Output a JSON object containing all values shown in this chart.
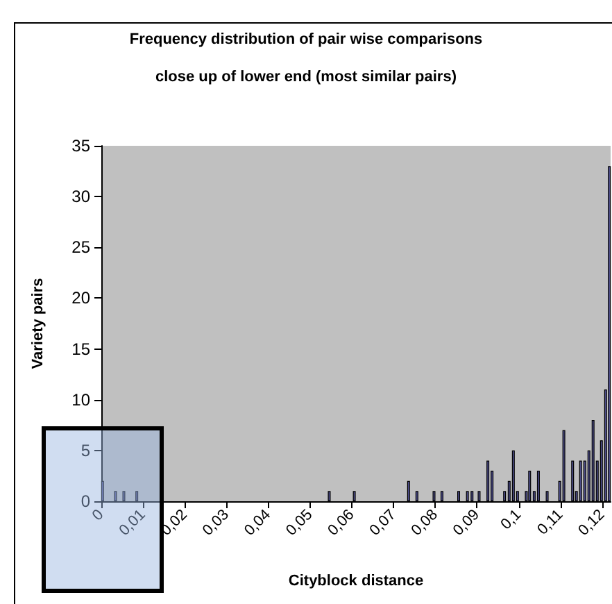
{
  "chart_data": {
    "type": "bar",
    "title": "Frequency distribution of pair wise comparisons",
    "subtitle": "close up of lower end (most similar pairs)",
    "xlabel": "Cityblock distance",
    "ylabel": "Variety pairs",
    "x": [
      0.0003,
      0.0034,
      0.0054,
      0.0085,
      0.0546,
      0.0606,
      0.0736,
      0.0756,
      0.0797,
      0.0816,
      0.0856,
      0.0877,
      0.0888,
      0.0905,
      0.0926,
      0.0936,
      0.0966,
      0.0977,
      0.0987,
      0.0997,
      0.1018,
      0.1026,
      0.1037,
      0.1047,
      0.1068,
      0.1098,
      0.1108,
      0.1129,
      0.1138,
      0.1148,
      0.1158,
      0.1168,
      0.1178,
      0.1188,
      0.1198,
      0.1208,
      0.1217
    ],
    "values": [
      2,
      1,
      1,
      1,
      1,
      1,
      2,
      1,
      1,
      1,
      1,
      1,
      1,
      1,
      4,
      3,
      1,
      2,
      5,
      1,
      1,
      3,
      1,
      3,
      1,
      2,
      7,
      4,
      1,
      4,
      4,
      5,
      8,
      4,
      6,
      11,
      33
    ],
    "color": "#50508f",
    "xlim": [
      0,
      0.122
    ],
    "xticks": [
      0,
      {
        "value": 0.01,
        "label": "0,01"
      },
      {
        "value": 0.02,
        "label": "0,02"
      },
      {
        "value": 0.03,
        "label": "0,03"
      },
      {
        "value": 0.04,
        "label": "0,04"
      },
      {
        "value": 0.05,
        "label": "0,05"
      },
      {
        "value": 0.06,
        "label": "0,06"
      },
      {
        "value": 0.07,
        "label": "0,07"
      },
      {
        "value": 0.08,
        "label": "0,08"
      },
      {
        "value": 0.09,
        "label": "0,09"
      },
      {
        "value": 0.1,
        "label": "0,1"
      },
      {
        "value": 0.11,
        "label": "0,11"
      },
      {
        "value": 0.12,
        "label": "0,12"
      }
    ],
    "ylim": [
      0,
      35
    ],
    "yticks": [
      0,
      5,
      10,
      15,
      20,
      25,
      30,
      35
    ],
    "grid": false
  }
}
